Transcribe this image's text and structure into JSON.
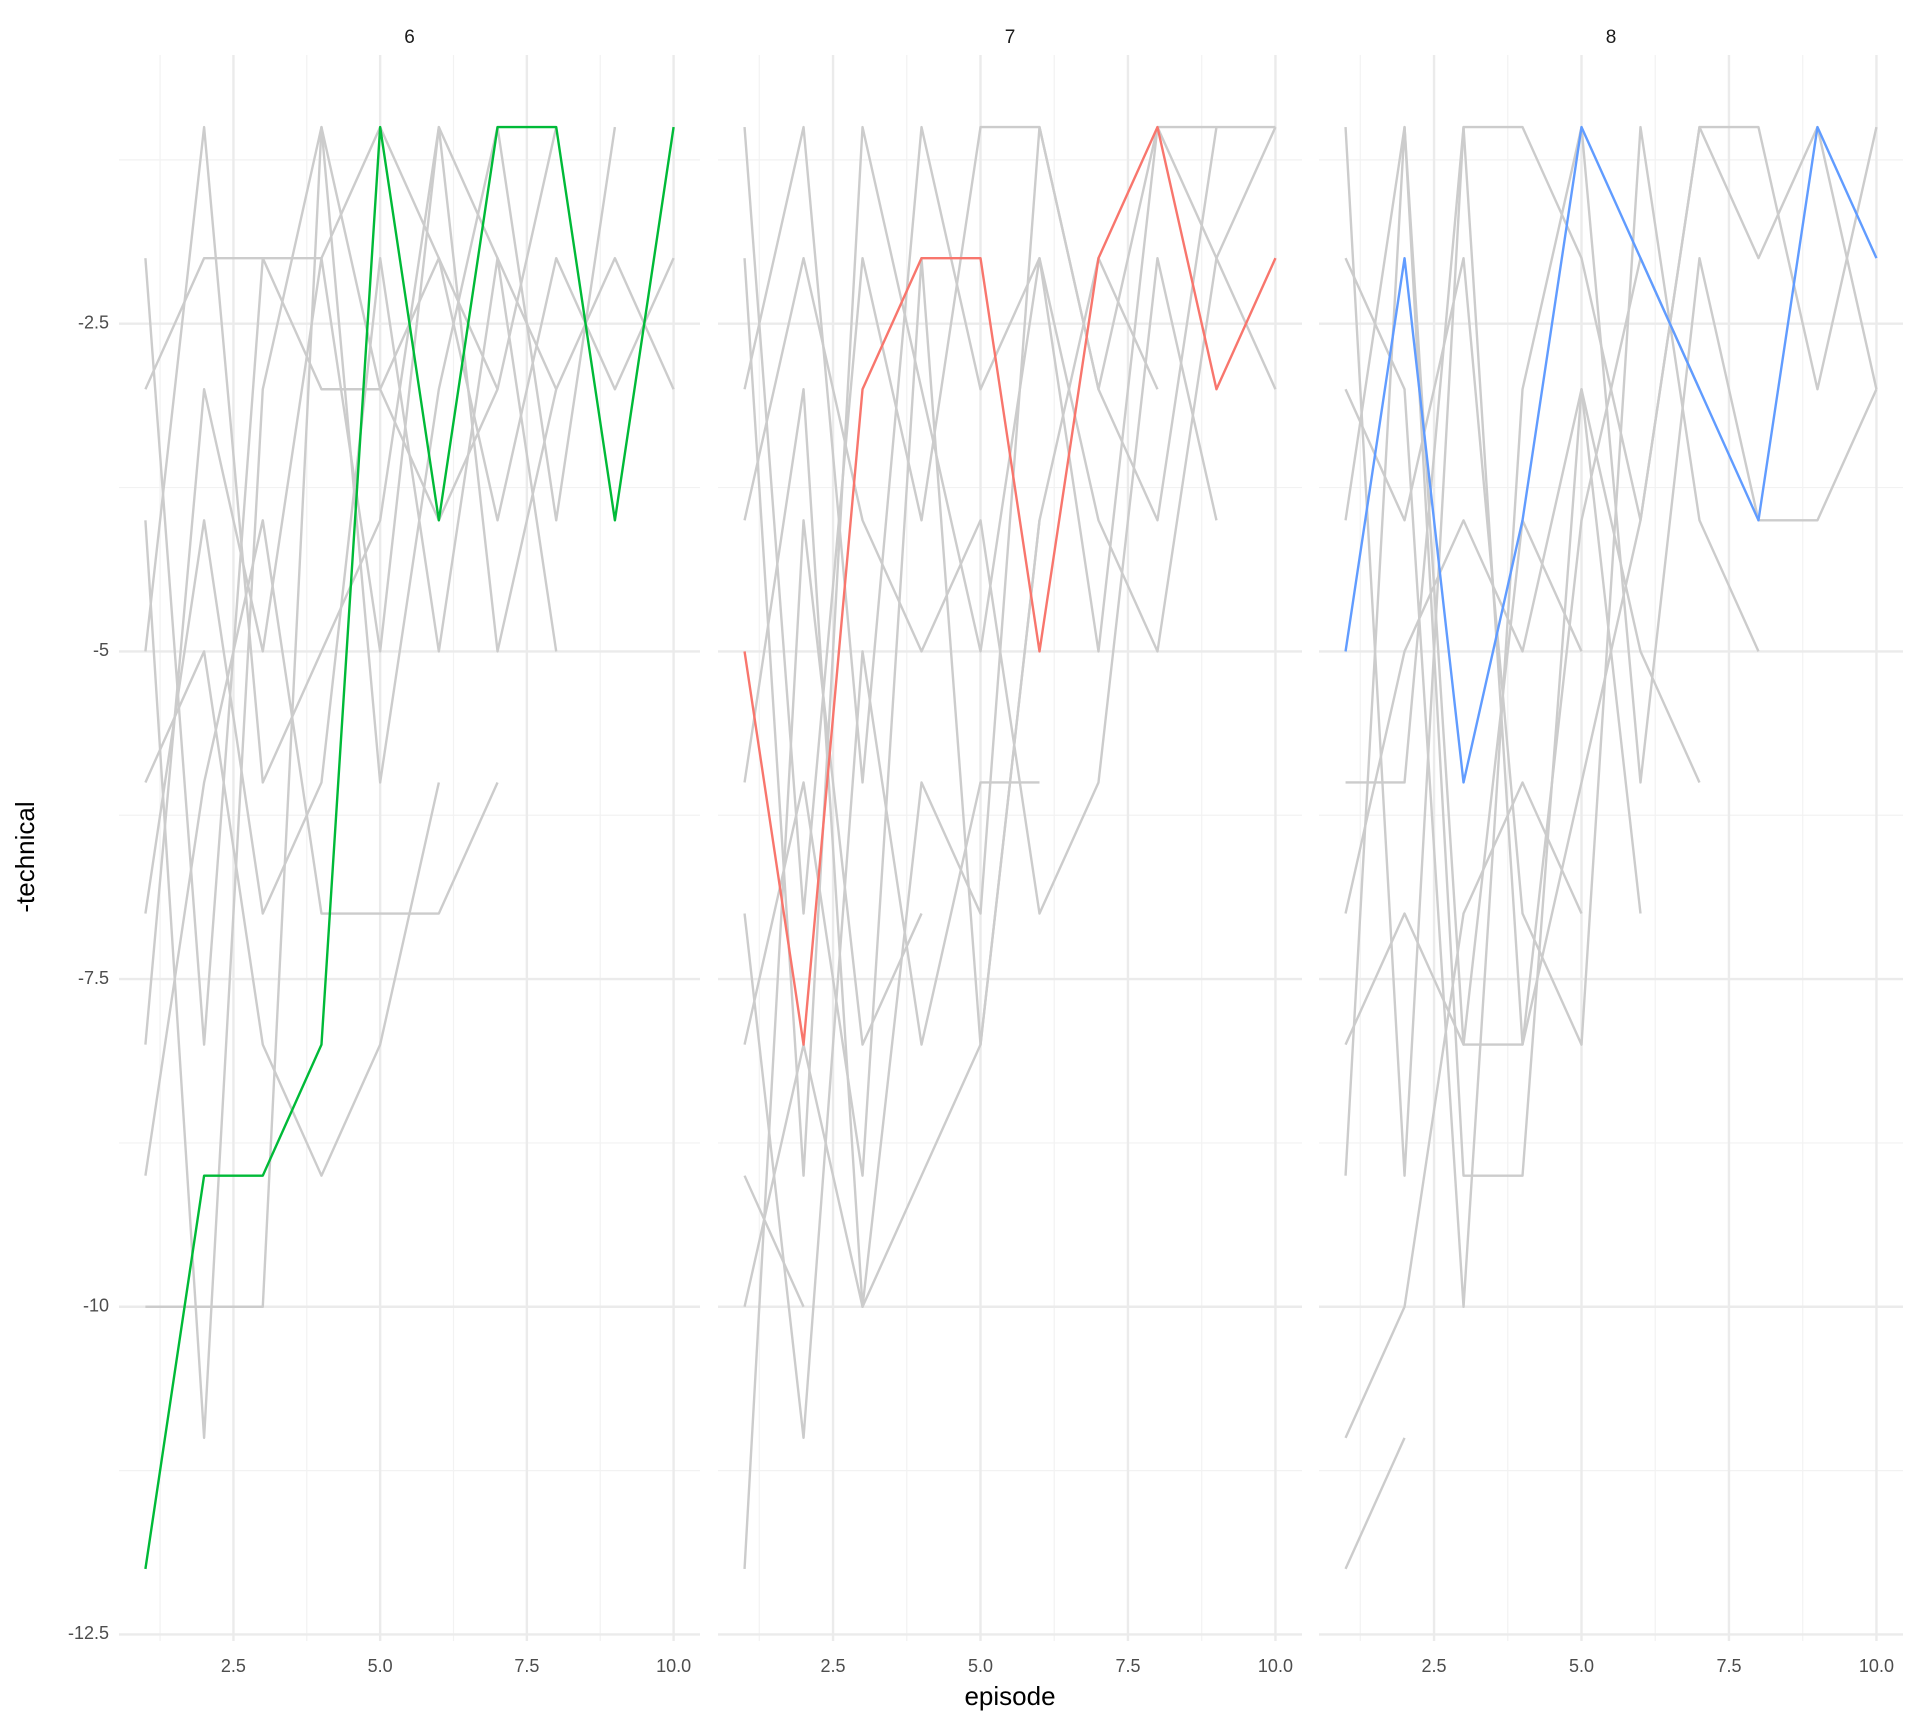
{
  "x_label": "episode",
  "y_label": "-technical",
  "chart_data": [
    {
      "type": "line",
      "title": "6",
      "x": [
        1,
        2,
        3,
        4,
        5,
        6,
        7,
        8,
        9,
        10
      ],
      "xlim": [
        0.55,
        10.45
      ],
      "ylim": [
        -12.55,
        -0.45
      ],
      "xticks": [
        2.5,
        {
          "value": 5,
          "label": "5.0"
        },
        7.5,
        {
          "value": 10,
          "label": "10.0"
        }
      ],
      "yticks": [
        -12.5,
        -10.0,
        -7.5,
        -5.0,
        -2.5
      ],
      "grid": true,
      "series": [
        {
          "color": "#cccccc",
          "values": [
            -2,
            -8,
            -2,
            -3,
            -3,
            -2,
            -4,
            -2,
            -3,
            -2
          ]
        },
        {
          "color": "#cccccc",
          "values": [
            -3,
            -2,
            -2,
            -2,
            -5,
            -1,
            -5,
            -3,
            -2,
            -3
          ]
        },
        {
          "color": "#cccccc",
          "values": [
            -4,
            -11,
            -3,
            -1,
            -6,
            -3,
            -1,
            -4,
            -1,
            null
          ]
        },
        {
          "color": "#cccccc",
          "values": [
            -5,
            -1,
            -6,
            -5,
            -4,
            -1,
            -2,
            -5,
            null,
            null
          ]
        },
        {
          "color": "#cccccc",
          "values": [
            -6,
            -5,
            -8,
            -9,
            -8,
            -6,
            null,
            null,
            null,
            null
          ]
        },
        {
          "color": "#cccccc",
          "values": [
            -7,
            -4,
            -7,
            -6,
            -2,
            -5,
            -2,
            -3,
            null,
            null
          ]
        },
        {
          "color": "#cccccc",
          "values": [
            -8,
            -3,
            -5,
            -2,
            -1,
            -2,
            -3,
            null,
            null,
            null
          ]
        },
        {
          "color": "#cccccc",
          "values": [
            -9,
            -6,
            -4,
            -7,
            -7,
            -7,
            -6,
            null,
            null,
            null
          ]
        },
        {
          "color": "#cccccc",
          "values": [
            -10,
            -10,
            -10,
            -1,
            -3,
            -4,
            -3,
            -1,
            null,
            null
          ]
        },
        {
          "color": "#00ba38",
          "values": [
            -12,
            -9,
            -9,
            -8,
            -1,
            -4,
            -1,
            -1,
            -4,
            -1
          ]
        }
      ]
    },
    {
      "type": "line",
      "title": "7",
      "x": [
        1,
        2,
        3,
        4,
        5,
        6,
        7,
        8,
        9,
        10
      ],
      "xlim": [
        0.55,
        10.45
      ],
      "ylim": [
        -12.55,
        -0.45
      ],
      "xticks": [
        2.5,
        {
          "value": 5,
          "label": "5.0"
        },
        7.5,
        {
          "value": 10,
          "label": "10.0"
        }
      ],
      "yticks": [
        -12.5,
        -10.0,
        -7.5,
        -5.0,
        -2.5
      ],
      "grid": true,
      "series": [
        {
          "color": "#cccccc",
          "values": [
            -1,
            -7,
            -2,
            -4,
            -1,
            -1,
            -3,
            -1,
            -1,
            -1
          ]
        },
        {
          "color": "#cccccc",
          "values": [
            -2,
            -9,
            -1,
            -3,
            -5,
            -2,
            -4,
            -5,
            -2,
            -3
          ]
        },
        {
          "color": "#cccccc",
          "values": [
            -3,
            -1,
            -6,
            -1,
            -3,
            -2,
            -5,
            -1,
            -2,
            -1
          ]
        },
        {
          "color": "#cccccc",
          "values": [
            -4,
            -2,
            -4,
            -5,
            -4,
            -7,
            -6,
            -2,
            -4,
            null
          ]
        },
        {
          "color": "#cccccc",
          "values": [
            -6,
            -3,
            -10,
            -6,
            -7,
            -1,
            -3,
            -4,
            -1,
            null
          ]
        },
        {
          "color": "#cccccc",
          "values": [
            -7,
            -11,
            -5,
            -8,
            -6,
            -6,
            null,
            null,
            null,
            null
          ]
        },
        {
          "color": "#cccccc",
          "values": [
            -8,
            -6,
            -9,
            -2,
            -8,
            -4,
            null,
            null,
            null,
            null
          ]
        },
        {
          "color": "#cccccc",
          "values": [
            -9,
            -10,
            null,
            null,
            null,
            null,
            null,
            null,
            null,
            null
          ]
        },
        {
          "color": "#cccccc",
          "values": [
            -12,
            -4,
            -8,
            -7,
            null,
            null,
            null,
            null,
            null,
            null
          ]
        },
        {
          "color": "#cccccc",
          "values": [
            -10,
            -8,
            -10,
            -9,
            -8,
            -4,
            -2,
            -3,
            null,
            null
          ]
        },
        {
          "color": "#f8766d",
          "values": [
            -5,
            -8,
            -3,
            -2,
            -2,
            -5,
            -2,
            -1,
            -3,
            -2
          ]
        }
      ]
    },
    {
      "type": "line",
      "title": "8",
      "x": [
        1,
        2,
        3,
        4,
        5,
        6,
        7,
        8,
        9,
        10
      ],
      "xlim": [
        0.55,
        10.45
      ],
      "ylim": [
        -12.55,
        -0.45
      ],
      "xticks": [
        2.5,
        {
          "value": 5,
          "label": "5.0"
        },
        7.5,
        {
          "value": 10,
          "label": "10.0"
        }
      ],
      "yticks": [
        -12.5,
        -10.0,
        -7.5,
        -5.0,
        -2.5
      ],
      "grid": true,
      "series": [
        {
          "color": "#cccccc",
          "values": [
            -1,
            -9,
            -1,
            -1,
            -2,
            -4,
            -1,
            -1,
            -3,
            -1
          ]
        },
        {
          "color": "#cccccc",
          "values": [
            -2,
            -3,
            -10,
            -3,
            -1,
            -6,
            -2,
            -4,
            -4,
            -3
          ]
        },
        {
          "color": "#cccccc",
          "values": [
            -3,
            -4,
            -2,
            -7,
            -8,
            -1,
            -4,
            -5,
            null,
            null
          ]
        },
        {
          "color": "#cccccc",
          "values": [
            -4,
            -1,
            -9,
            -9,
            -3,
            -5,
            -6,
            null,
            null,
            null
          ]
        },
        {
          "color": "#cccccc",
          "values": [
            -6,
            -6,
            -1,
            -8,
            -6,
            -4,
            -1,
            -2,
            -1,
            -3
          ]
        },
        {
          "color": "#cccccc",
          "values": [
            -7,
            -5,
            -4,
            -5,
            -3,
            -7,
            null,
            null,
            null,
            null
          ]
        },
        {
          "color": "#cccccc",
          "values": [
            -8,
            -7,
            -8,
            -8,
            -4,
            -2,
            -3,
            null,
            null,
            null
          ]
        },
        {
          "color": "#cccccc",
          "values": [
            -11,
            -10,
            -7,
            -6,
            -7,
            null,
            null,
            null,
            null,
            null
          ]
        },
        {
          "color": "#cccccc",
          "values": [
            -12,
            -11,
            null,
            null,
            null,
            null,
            null,
            null,
            null,
            null
          ]
        },
        {
          "color": "#cccccc",
          "values": [
            -9,
            -1,
            -8,
            -4,
            -5,
            null,
            null,
            null,
            null,
            null
          ]
        },
        {
          "color": "#619cff",
          "values": [
            -5,
            -2,
            -6,
            -4,
            -1,
            -2,
            -3,
            -4,
            -1,
            -2
          ]
        }
      ]
    }
  ]
}
